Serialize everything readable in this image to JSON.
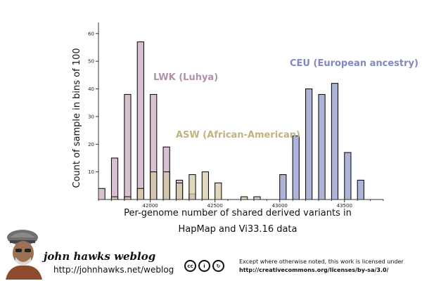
{
  "chart_data": {
    "type": "bar",
    "title": "",
    "xlabel_lines": [
      "Per-genome number of shared derived variants in",
      "HapMap and Vi33.16 data"
    ],
    "ylabel": "Count of sample in bins of 100",
    "xlim": [
      41600,
      43800
    ],
    "ylim": [
      0,
      63
    ],
    "bin_width": 50,
    "x_ticks": [
      42000,
      42500,
      43000,
      43500
    ],
    "y_ticks": [
      10,
      20,
      30,
      40,
      50,
      60
    ],
    "grid": false,
    "series": [
      {
        "name": "LWK (Luhya)",
        "color": "#c9a8bf",
        "bins": [
          {
            "x": 41625,
            "count": 4
          },
          {
            "x": 41725,
            "count": 15
          },
          {
            "x": 41825,
            "count": 38
          },
          {
            "x": 41925,
            "count": 57
          },
          {
            "x": 42025,
            "count": 38
          },
          {
            "x": 42125,
            "count": 19
          },
          {
            "x": 42225,
            "count": 7
          },
          {
            "x": 42325,
            "count": 2
          }
        ]
      },
      {
        "name": "ASW (African-American)",
        "color": "#d4c8a2",
        "bins": [
          {
            "x": 41725,
            "count": 1
          },
          {
            "x": 41825,
            "count": 1
          },
          {
            "x": 41925,
            "count": 4
          },
          {
            "x": 42025,
            "count": 10
          },
          {
            "x": 42125,
            "count": 10
          },
          {
            "x": 42225,
            "count": 6
          },
          {
            "x": 42325,
            "count": 9
          },
          {
            "x": 42425,
            "count": 10
          },
          {
            "x": 42525,
            "count": 6
          },
          {
            "x": 42725,
            "count": 1
          },
          {
            "x": 42825,
            "count": 1
          }
        ]
      },
      {
        "name": "CEU (European ancestry)",
        "color": "#8f96c9",
        "bins": [
          {
            "x": 43025,
            "count": 9
          },
          {
            "x": 43125,
            "count": 23
          },
          {
            "x": 43225,
            "count": 40
          },
          {
            "x": 43325,
            "count": 38
          },
          {
            "x": 43425,
            "count": 42
          },
          {
            "x": 43525,
            "count": 17
          },
          {
            "x": 43625,
            "count": 7
          }
        ]
      }
    ]
  },
  "footer": {
    "blog_title": "john hawks weblog",
    "blog_url": "http://johnhawks.net/weblog",
    "cc_icons": [
      {
        "icon": "cc-icon",
        "glyph": "cc"
      },
      {
        "icon": "by-icon",
        "glyph": "i"
      },
      {
        "icon": "sa-icon",
        "glyph": "↻"
      }
    ],
    "license_note": "Except where otherwise noted, this work is licensed under",
    "license_url": "http://creativecommons.org/licenses/by-sa/3.0/"
  }
}
